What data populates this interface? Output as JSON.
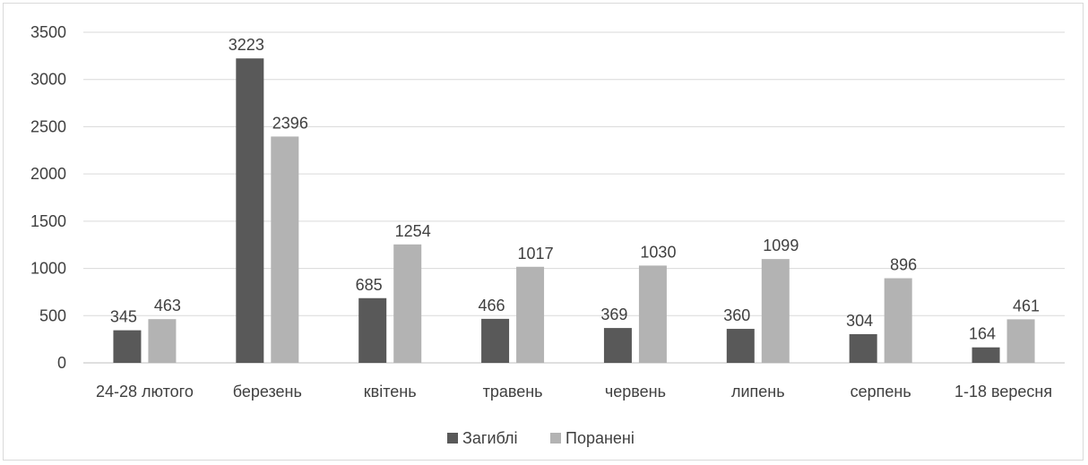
{
  "chart_data": {
    "type": "bar",
    "title": "",
    "xlabel": "",
    "ylabel": "",
    "categories": [
      "24-28 лютого",
      "березень",
      "квітень",
      "травень",
      "червень",
      "липень",
      "серпень",
      "1-18 вересня"
    ],
    "series": [
      {
        "name": "Загиблі",
        "color": "#595959",
        "values": [
          345,
          3223,
          685,
          466,
          369,
          360,
          304,
          164
        ]
      },
      {
        "name": "Поранені",
        "color": "#b3b3b3",
        "values": [
          463,
          2396,
          1254,
          1017,
          1030,
          1099,
          896,
          461
        ]
      }
    ],
    "ylim": [
      0,
      3500
    ],
    "yticks": [
      0,
      500,
      1000,
      1500,
      2000,
      2500,
      3000,
      3500
    ],
    "grid": true,
    "legend_position": "bottom",
    "data_labels": true
  }
}
